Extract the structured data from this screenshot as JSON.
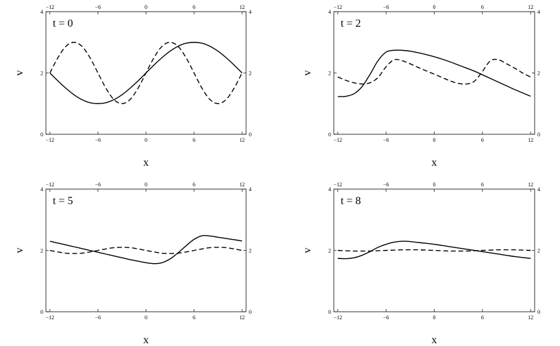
{
  "chart_data": [
    {
      "type": "line",
      "annotation": "t = 0",
      "xlabel": "x",
      "ylabel": "v",
      "xlim": [
        -12.5,
        12.5
      ],
      "ylim": [
        0,
        4
      ],
      "xticks": [
        -12,
        -6,
        0,
        6,
        12
      ],
      "yticks": [
        0,
        2,
        4
      ],
      "grid": false,
      "series": [
        {
          "style": "solid",
          "x": [
            -12,
            -11,
            -10,
            -9,
            -8,
            -7,
            -6,
            -5,
            -4,
            -3,
            -2,
            -1,
            0,
            1,
            2,
            3,
            4,
            5,
            6,
            7,
            8,
            9,
            10,
            11,
            12
          ],
          "y": [
            2.0,
            1.74,
            1.5,
            1.29,
            1.13,
            1.03,
            1.0,
            1.03,
            1.13,
            1.29,
            1.5,
            1.74,
            2.0,
            2.26,
            2.5,
            2.71,
            2.87,
            2.97,
            3.0,
            2.97,
            2.87,
            2.71,
            2.5,
            2.26,
            2.0
          ]
        },
        {
          "style": "dashed",
          "x": [
            -12,
            -11,
            -10,
            -9,
            -8,
            -7,
            -6,
            -5,
            -4,
            -3,
            -2,
            -1,
            0,
            1,
            2,
            3,
            4,
            5,
            6,
            7,
            8,
            9,
            10,
            11,
            12
          ],
          "y": [
            2.0,
            2.5,
            2.87,
            3.0,
            2.87,
            2.5,
            2.0,
            1.5,
            1.13,
            1.0,
            1.13,
            1.5,
            2.0,
            2.5,
            2.87,
            3.0,
            2.87,
            2.5,
            2.0,
            1.5,
            1.13,
            1.0,
            1.13,
            1.5,
            2.0
          ]
        }
      ]
    },
    {
      "type": "line",
      "annotation": "t = 2",
      "xlabel": "x",
      "ylabel": "v",
      "xlim": [
        -12.5,
        12.5
      ],
      "ylim": [
        0,
        4
      ],
      "xticks": [
        -12,
        -6,
        0,
        6,
        12
      ],
      "yticks": [
        0,
        2,
        4
      ],
      "grid": false,
      "series": [
        {
          "style": "solid",
          "x": [
            -12,
            -11,
            -10,
            -9,
            -8,
            -7,
            -6,
            -5,
            -4,
            -3,
            -2,
            -1,
            0,
            1,
            2,
            3,
            4,
            5,
            6,
            7,
            8,
            9,
            10,
            11,
            12
          ],
          "y": [
            1.23,
            1.24,
            1.32,
            1.55,
            1.95,
            2.4,
            2.68,
            2.74,
            2.74,
            2.71,
            2.66,
            2.6,
            2.53,
            2.45,
            2.36,
            2.26,
            2.16,
            2.06,
            1.94,
            1.82,
            1.7,
            1.58,
            1.46,
            1.35,
            1.24
          ]
        },
        {
          "style": "dashed",
          "x": [
            -12,
            -11,
            -10,
            -9,
            -8,
            -7,
            -6,
            -5,
            -4,
            -3,
            -2,
            -1,
            0,
            1,
            2,
            3,
            4,
            5,
            6,
            7,
            8,
            9,
            10,
            11,
            12
          ],
          "y": [
            1.87,
            1.76,
            1.68,
            1.64,
            1.68,
            1.85,
            2.2,
            2.43,
            2.4,
            2.3,
            2.18,
            2.07,
            1.96,
            1.85,
            1.74,
            1.66,
            1.64,
            1.73,
            2.05,
            2.4,
            2.43,
            2.3,
            2.16,
            2.0,
            1.87
          ]
        }
      ]
    },
    {
      "type": "line",
      "annotation": "t = 5",
      "xlabel": "x",
      "ylabel": "v",
      "xlim": [
        -12.5,
        12.5
      ],
      "ylim": [
        0,
        4
      ],
      "xticks": [
        -12,
        -6,
        0,
        6,
        12
      ],
      "yticks": [
        0,
        2,
        4
      ],
      "grid": false,
      "series": [
        {
          "style": "solid",
          "x": [
            -12,
            -11,
            -10,
            -9,
            -8,
            -7,
            -6,
            -5,
            -4,
            -3,
            -2,
            -1,
            0,
            1,
            2,
            3,
            4,
            5,
            6,
            7,
            8,
            9,
            10,
            11,
            12
          ],
          "y": [
            2.3,
            2.24,
            2.18,
            2.12,
            2.06,
            2.0,
            1.94,
            1.88,
            1.82,
            1.76,
            1.7,
            1.65,
            1.6,
            1.57,
            1.6,
            1.72,
            1.92,
            2.15,
            2.36,
            2.48,
            2.47,
            2.43,
            2.39,
            2.35,
            2.31
          ]
        },
        {
          "style": "dashed",
          "x": [
            -12,
            -11,
            -10,
            -9,
            -8,
            -7,
            -6,
            -5,
            -4,
            -3,
            -2,
            -1,
            0,
            1,
            2,
            3,
            4,
            5,
            6,
            7,
            8,
            9,
            10,
            11,
            12
          ],
          "y": [
            2.0,
            1.95,
            1.91,
            1.9,
            1.91,
            1.95,
            2.0,
            2.05,
            2.09,
            2.1,
            2.09,
            2.05,
            2.0,
            1.95,
            1.91,
            1.9,
            1.91,
            1.95,
            2.0,
            2.05,
            2.09,
            2.1,
            2.09,
            2.05,
            2.0
          ]
        }
      ]
    },
    {
      "type": "line",
      "annotation": "t = 8",
      "xlabel": "x",
      "ylabel": "v",
      "xlim": [
        -12.5,
        12.5
      ],
      "ylim": [
        0,
        4
      ],
      "xticks": [
        -12,
        -6,
        0,
        6,
        12
      ],
      "yticks": [
        0,
        2,
        4
      ],
      "grid": false,
      "series": [
        {
          "style": "solid",
          "x": [
            -12,
            -11,
            -10,
            -9,
            -8,
            -7,
            -6,
            -5,
            -4,
            -3,
            -2,
            -1,
            0,
            1,
            2,
            3,
            4,
            5,
            6,
            7,
            8,
            9,
            10,
            11,
            12
          ],
          "y": [
            1.74,
            1.73,
            1.76,
            1.84,
            1.96,
            2.1,
            2.2,
            2.27,
            2.3,
            2.29,
            2.26,
            2.23,
            2.2,
            2.16,
            2.12,
            2.08,
            2.04,
            2.0,
            1.96,
            1.92,
            1.88,
            1.84,
            1.8,
            1.77,
            1.74
          ]
        },
        {
          "style": "dashed",
          "x": [
            -12,
            -11,
            -10,
            -9,
            -8,
            -7,
            -6,
            -5,
            -4,
            -3,
            -2,
            -1,
            0,
            1,
            2,
            3,
            4,
            5,
            6,
            7,
            8,
            9,
            10,
            11,
            12
          ],
          "y": [
            2.0,
            1.99,
            1.98,
            1.98,
            1.98,
            1.99,
            2.0,
            2.01,
            2.02,
            2.02,
            2.02,
            2.01,
            2.0,
            1.99,
            1.98,
            1.98,
            1.98,
            1.99,
            2.0,
            2.01,
            2.02,
            2.02,
            2.02,
            2.01,
            2.0
          ]
        }
      ]
    }
  ]
}
